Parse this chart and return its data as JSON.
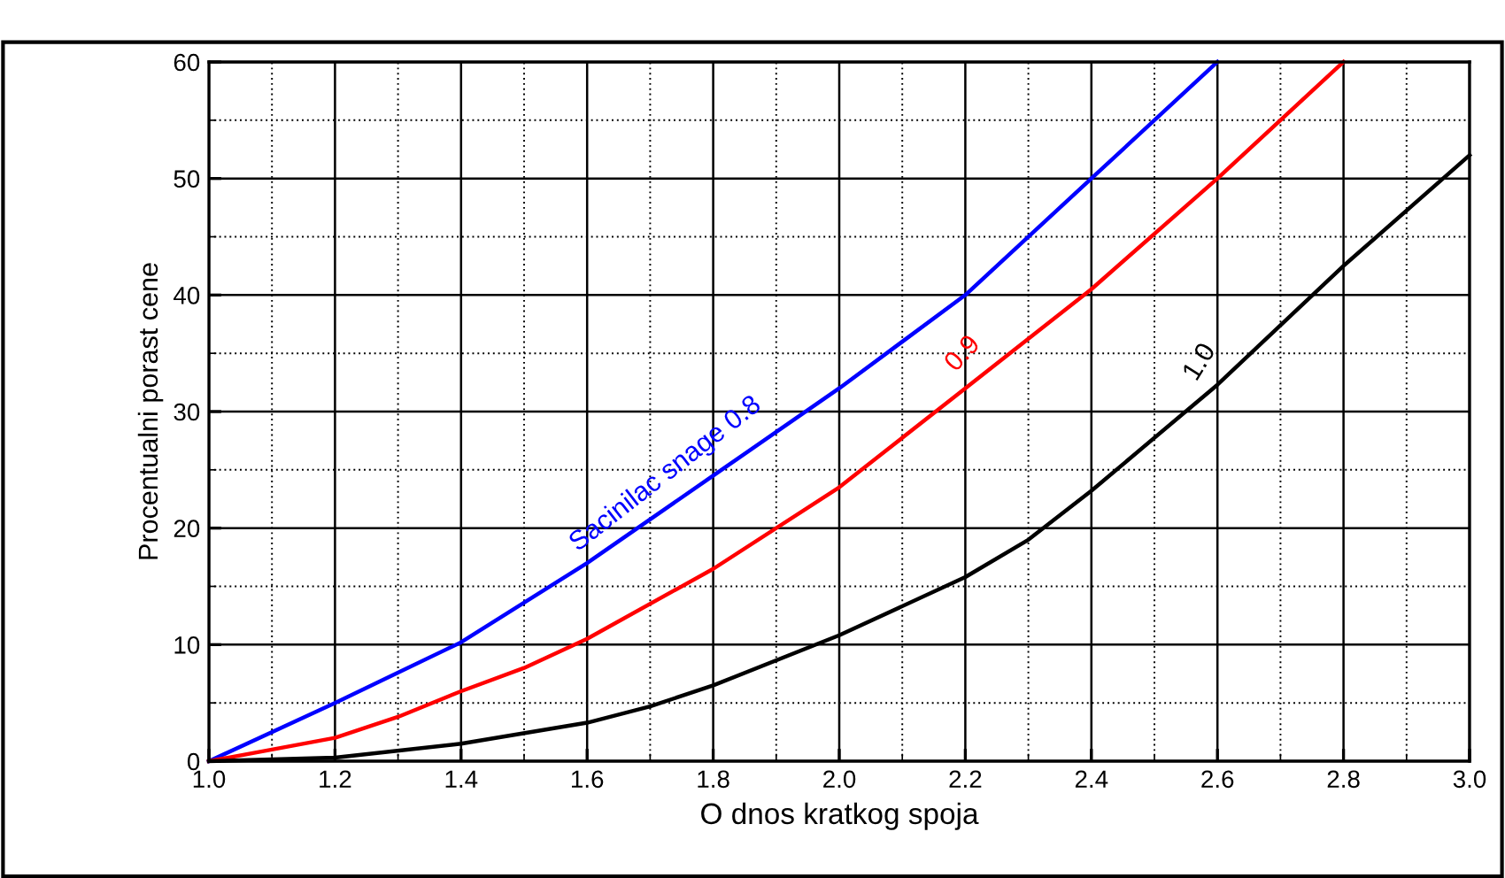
{
  "chart_data": {
    "type": "line",
    "xlabel": "O dnos kratkog spoja",
    "ylabel": "Procentualni porast cene",
    "xlim": [
      1.0,
      3.0
    ],
    "xticks": [
      {
        "value": 1,
        "label": "1.0"
      },
      1.2,
      1.4,
      1.6,
      1.8,
      {
        "value": 2,
        "label": "2.0"
      },
      2.2,
      2.4,
      2.6,
      2.8,
      {
        "value": 3,
        "label": "3.0"
      }
    ],
    "ylim": [
      0,
      60
    ],
    "yticks": [
      0,
      10,
      20,
      30,
      40,
      50,
      60
    ],
    "grid": true,
    "marker": "none",
    "line_style": "solid",
    "series": [
      {
        "name": "Sacinilac snage 0.8",
        "color": "#0000ff",
        "x": [
          1.0,
          1.2,
          1.4,
          1.6,
          1.8,
          2.0,
          2.2,
          2.4,
          2.6
        ],
        "values": [
          0,
          5,
          10.2,
          17,
          24.5,
          32,
          40,
          50,
          60
        ]
      },
      {
        "name": "0.9",
        "color": "#ff0000",
        "x": [
          1.0,
          1.1,
          1.2,
          1.3,
          1.4,
          1.5,
          1.6,
          1.8,
          2.0,
          2.2,
          2.4,
          2.6,
          2.8
        ],
        "values": [
          0,
          1,
          2,
          3.8,
          6,
          8,
          10.5,
          16.5,
          23.5,
          32,
          40.5,
          50,
          60
        ]
      },
      {
        "name": "1.0",
        "color": "#000000",
        "x": [
          1.0,
          1.2,
          1.4,
          1.6,
          1.7,
          1.8,
          2.0,
          2.2,
          2.3,
          2.4,
          2.6,
          2.8,
          3.0
        ],
        "values": [
          0,
          0.3,
          1.5,
          3.3,
          4.7,
          6.5,
          10.8,
          15.8,
          19,
          23.2,
          32.3,
          42.5,
          52
        ]
      }
    ]
  }
}
